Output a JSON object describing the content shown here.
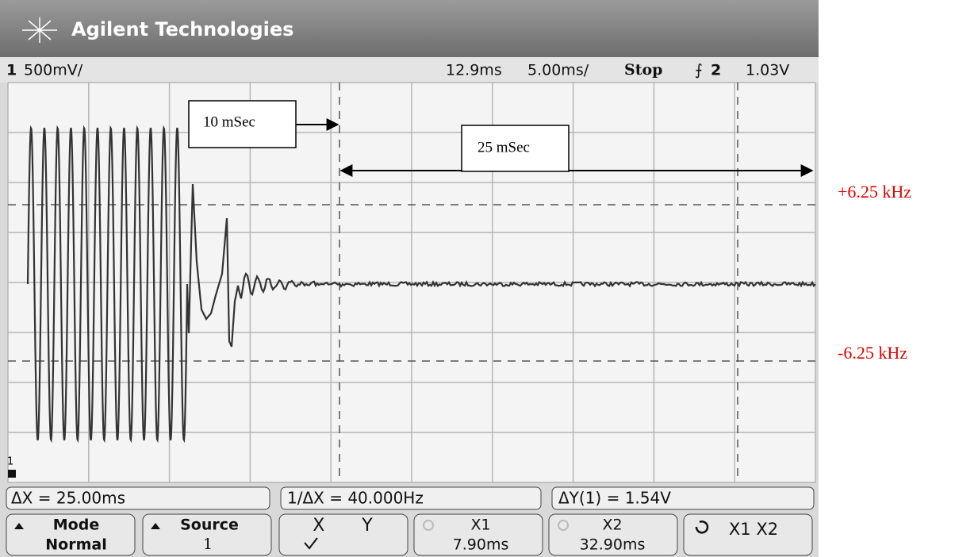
{
  "header": {
    "brand": "Agilent Technologies"
  },
  "status": {
    "channel": "1",
    "scale": "500mV/",
    "delay": "12.9ms",
    "timebase": "5.00ms/",
    "run_state": "Stop",
    "trigger_source": "2",
    "trigger_level": "1.03V"
  },
  "annotations": {
    "marker_1": "10 mSec",
    "marker_2": "25 mSec",
    "upper_limit": "+6.25 kHz",
    "lower_limit": "-6.25 kHz"
  },
  "measurements": [
    "ΔX = 25.00ms",
    "1/ΔX = 40.000Hz",
    "ΔY(1) = 1.54V"
  ],
  "softkeys": [
    {
      "label": "Mode",
      "value": "Normal"
    },
    {
      "label": "Source",
      "value": "1"
    },
    {
      "label": "X Y"
    },
    {
      "label": "X1",
      "value": "7.90ms"
    },
    {
      "label": "X2",
      "value": "32.90ms"
    },
    {
      "label": "X1 X2"
    }
  ],
  "ground_marker": "1"
}
